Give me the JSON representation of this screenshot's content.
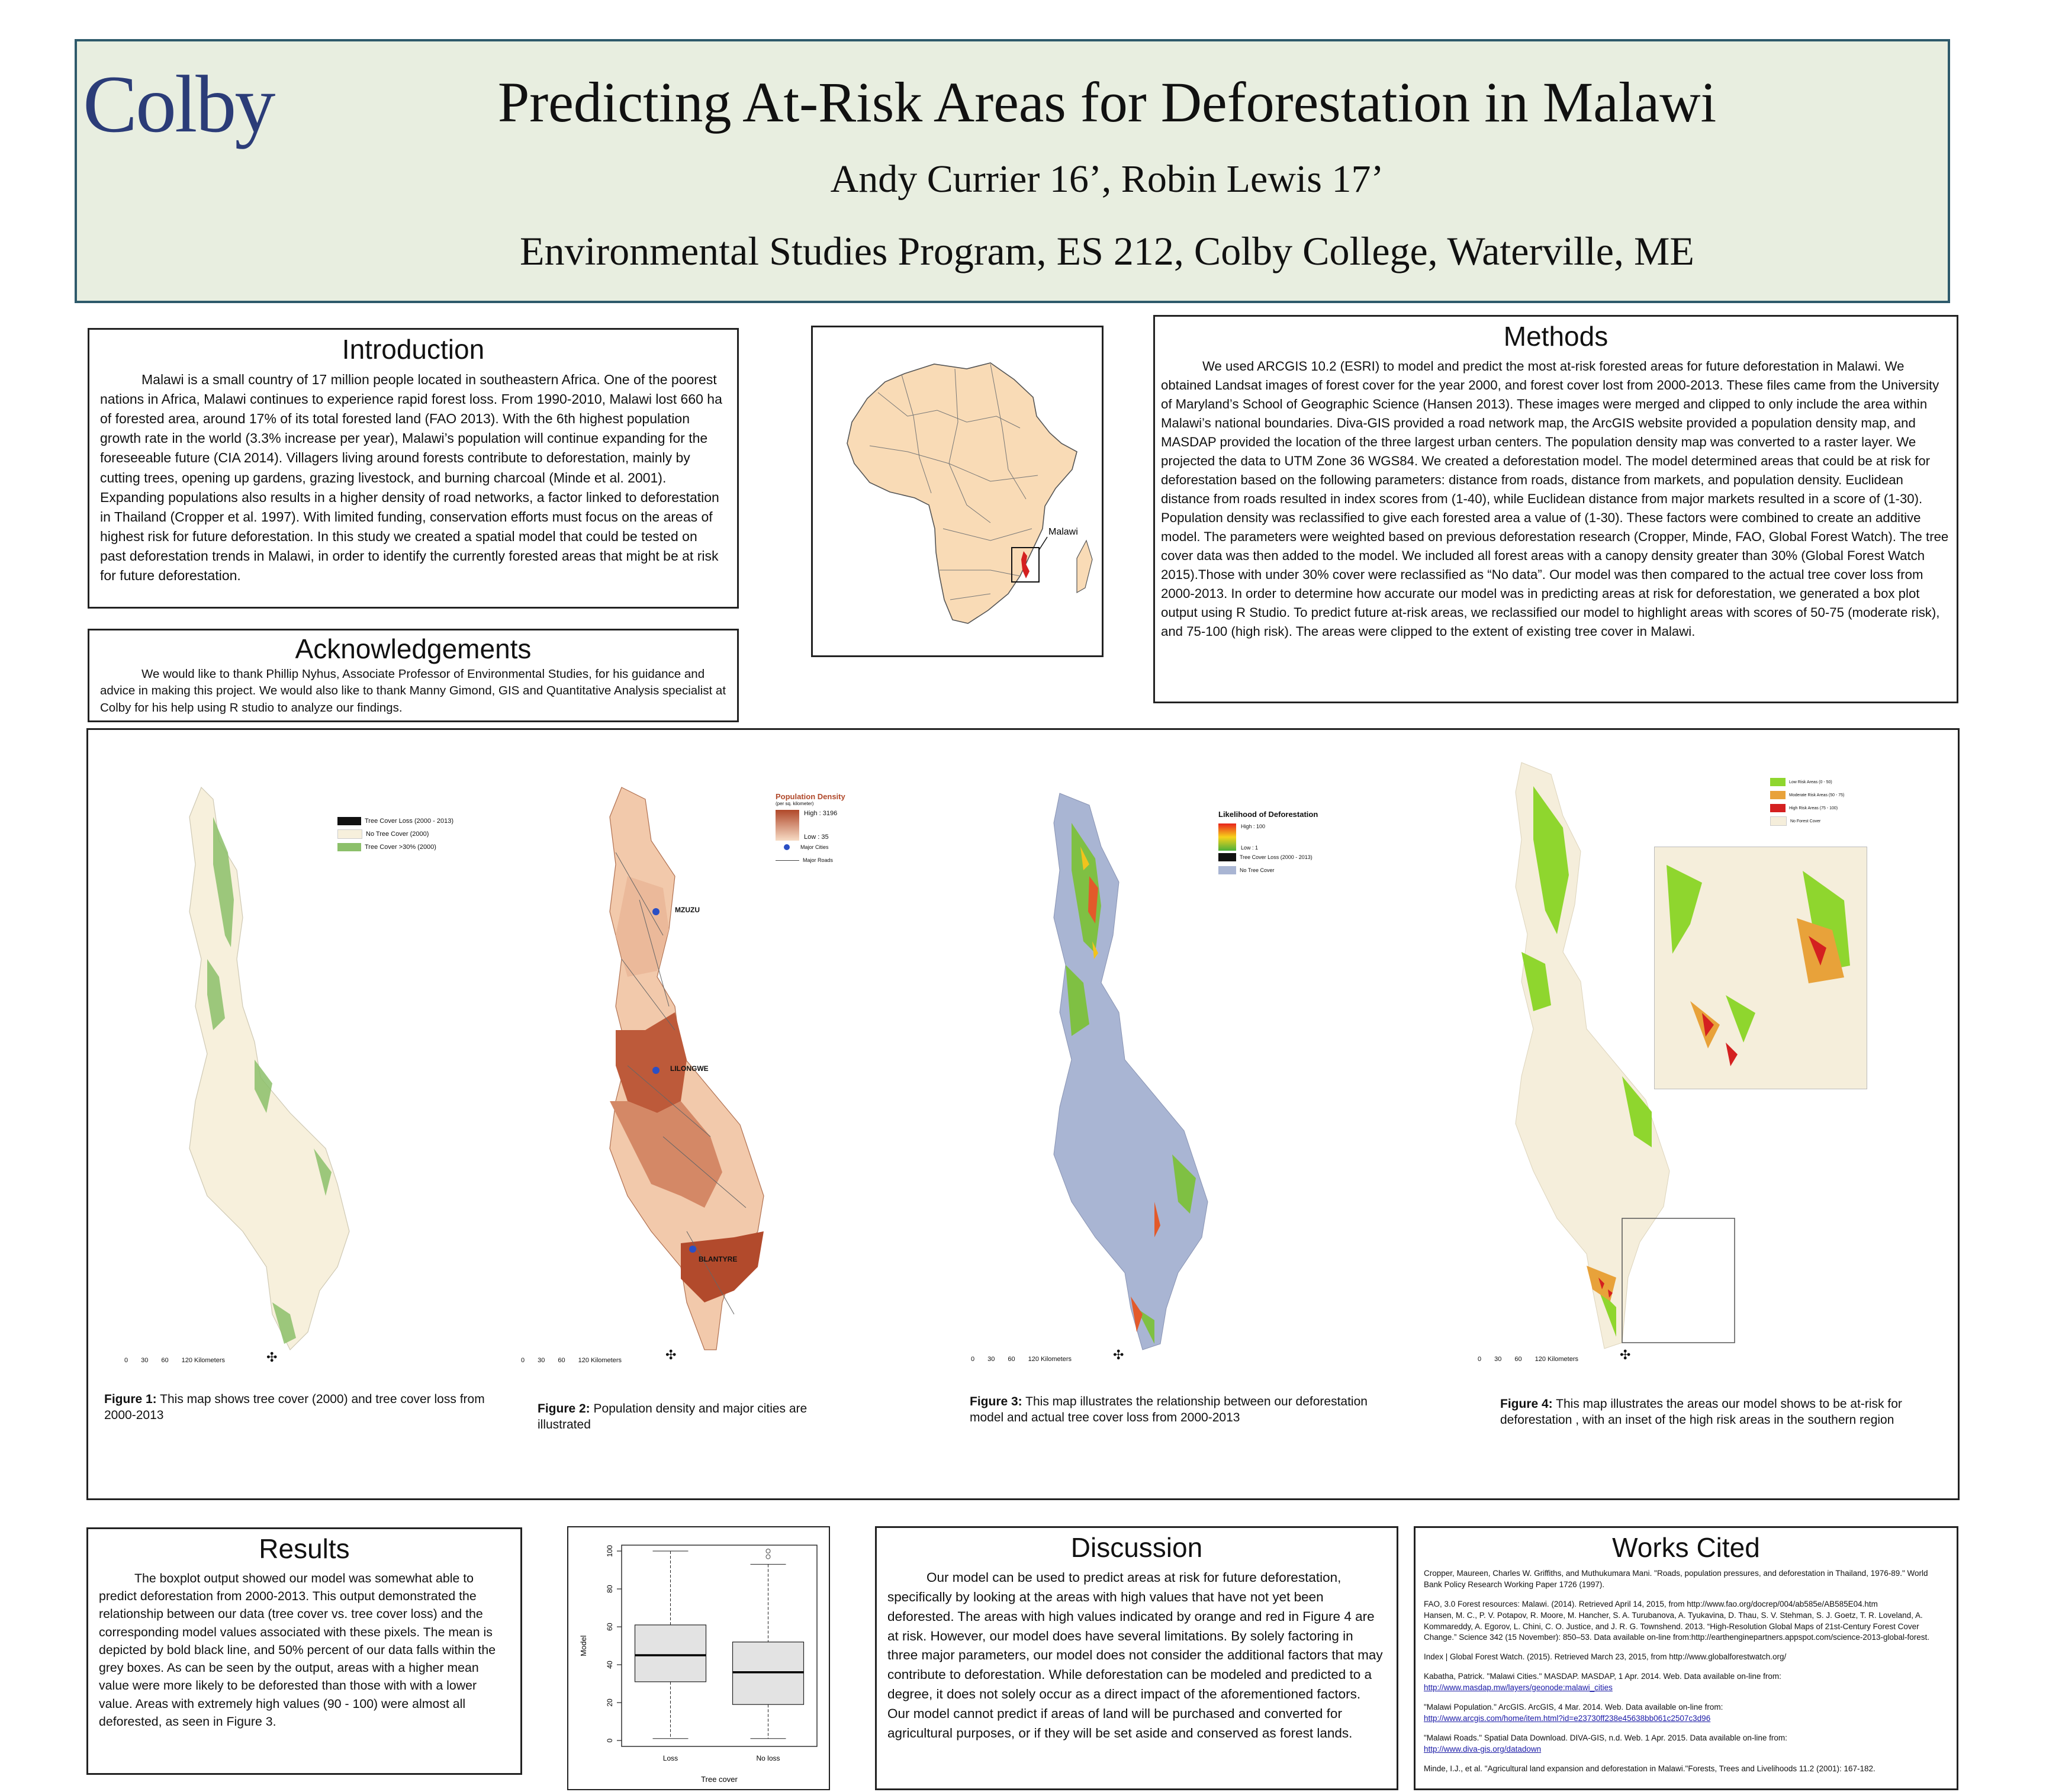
{
  "header": {
    "logo": "Colby",
    "title": "Predicting At-Risk Areas for Deforestation in Malawi",
    "authors": "Andy Currier 16’, Robin Lewis 17’",
    "affiliation": "Environmental Studies Program, ES 212, Colby College, Waterville, ME"
  },
  "introduction": {
    "title": "Introduction",
    "body": "Malawi is a small country of 17 million people located in southeastern Africa. One of the poorest nations in Africa, Malawi continues to experience rapid forest loss. From 1990-2010, Malawi lost 660 ha of forested area, around 17% of its total forested land (FAO 2013). With the 6th highest population growth rate in the world (3.3% increase per year), Malawi’s population will continue expanding for the foreseeable future (CIA 2014). Villagers living around forests contribute to deforestation, mainly by cutting trees, opening up gardens, grazing livestock, and burning charcoal  (Minde et al. 2001). Expanding populations also results in a higher density of road networks, a factor linked to deforestation in Thailand (Cropper et al. 1997). With limited funding, conservation efforts must focus on the areas of highest risk for future deforestation. In this study we created a spatial model that could be tested on past deforestation trends in Malawi, in order to identify the currently forested areas that might be at risk for future deforestation."
  },
  "acknowledgements": {
    "title": "Acknowledgements",
    "body": "We would like to thank Phillip Nyhus, Associate Professor of Environmental Studies, for his guidance and advice in making this project. We would also like to thank Manny Gimond, GIS and Quantitative Analysis specialist at Colby for his help using R studio to analyze our findings."
  },
  "africa_map": {
    "label": "Malawi"
  },
  "methods": {
    "title": "Methods",
    "body": "We used ARCGIS 10.2 (ESRI) to model and predict the most at-risk forested areas for future deforestation in Malawi. We obtained Landsat images of forest cover for the year 2000, and forest cover lost from 2000-2013. These files came from the University of Maryland’s School of Geographic Science (Hansen 2013). These images were merged and clipped to only include the area within Malawi’s national boundaries. Diva-GIS provided a road network map, the ArcGIS website provided a population density map, and MASDAP provided the location of the three largest urban centers. The population density map was converted to a raster layer. We projected the data to UTM Zone 36 WGS84. We created a deforestation model. The model determined areas that could be at risk for deforestation based on the following parameters: distance from roads, distance from markets, and population density. Euclidean distance from roads resulted in index scores from (1-40), while Euclidean distance from major markets resulted in a score of (1-30). Population density was reclassified to give each forested area a value of (1-30). These factors were combined to create an additive model. The parameters were weighted based on previous deforestation research (Cropper, Minde, FAO, Global Forest Watch). The tree cover data was then added to the model. We included all forest areas with a canopy density greater than 30% (Global Forest Watch 2015).Those with under 30% cover were reclassified as “No data”. Our model was then compared to the actual tree cover loss from 2000-2013. In order to determine how accurate our model was in predicting areas at risk for deforestation, we generated a box plot output using R Studio. To predict future at-risk areas, we reclassified our model to highlight areas with scores of 50-75 (moderate risk), and 75-100 (high risk). The areas were clipped to the extent of existing tree cover in Malawi."
  },
  "fig1": {
    "legend": [
      "Tree Cover Loss (2000 - 2013)",
      "No Tree Cover (2000)",
      "Tree Cover >30% (2000)"
    ],
    "scale": [
      "0",
      "30",
      "60",
      "120 Kilometers"
    ],
    "caption_label": "Figure 1:",
    "caption_text": " This map shows tree cover (2000) and tree cover loss from 2000-2013"
  },
  "fig2": {
    "legend_title": "Population Density",
    "legend_unit": "(per sq. kilometer)",
    "legend_high": "High : 3196",
    "legend_low": "Low : 35",
    "legend_cities": "Major Cities",
    "legend_roads": "Major Roads",
    "cities": [
      "MZUZU",
      "LILONGWE",
      "BLANTYRE"
    ],
    "scale": [
      "0",
      "30",
      "60",
      "120 Kilometers"
    ],
    "caption_label": "Figure 2:",
    "caption_text": " Population density and major cities are illustrated"
  },
  "fig3": {
    "legend_title": "Likelihood of Deforestation",
    "legend_high": "High : 100",
    "legend_low": "Low : 1",
    "legend_loss": "Tree Cover Loss (2000 - 2013)",
    "legend_none": "No Tree Cover",
    "scale": [
      "0",
      "30",
      "60",
      "120 Kilometers"
    ],
    "caption_label": "Figure 3:",
    "caption_text": " This map illustrates the relationship between our deforestation model and actual tree cover loss from 2000-2013"
  },
  "fig4": {
    "legend": [
      "Low Risk Areas (0 - 50)",
      "Moderate Risk Areas (50 - 75)",
      "High Risk Areas (75 - 100)",
      "No Forest Cover"
    ],
    "scale": [
      "0",
      "30",
      "60",
      "120 Kilometers"
    ],
    "caption_label": "Figure 4:",
    "caption_text": " This map illustrates the areas our model shows to be at-risk for deforestation , with an inset of the high risk areas in the southern region"
  },
  "results": {
    "title": "Results",
    "body": "The boxplot output showed our model was somewhat able to predict deforestation from 2000-2013. This output demonstrated the relationship between our data (tree cover vs. tree cover loss) and the corresponding model values associated with these pixels. The mean is depicted by bold black line, and 50% percent of our data falls within the grey boxes. As can be seen by the output, areas with a higher mean value were more likely to be deforested than those with with a lower value. Areas with extremely high values (90 - 100) were almost all deforested, as seen in Figure 3."
  },
  "chart_data": {
    "type": "box",
    "categories": [
      "Loss",
      "No loss"
    ],
    "xlabel": "Tree cover",
    "ylabel": "Model",
    "ylim": [
      0,
      100
    ],
    "yticks": [
      "0",
      "20",
      "40",
      "60",
      "80",
      "100"
    ],
    "series": [
      {
        "category": "Loss",
        "min": 1,
        "q1": 31,
        "median": 45,
        "q3": 61,
        "max": 100,
        "outliers": []
      },
      {
        "category": "No loss",
        "min": 1,
        "q1": 19,
        "median": 36,
        "q3": 52,
        "max": 93,
        "outliers": [
          97,
          100
        ]
      }
    ],
    "box_color": "#e3e3e3"
  },
  "discussion": {
    "title": "Discussion",
    "body": "Our model can be used to predict areas at risk for future deforestation, specifically by looking at the areas with high values that have not yet been deforested. The areas with high values indicated by orange and red in Figure 4 are at risk. However, our model does have several limitations. By solely factoring in three major parameters, our model does not consider the additional factors that may contribute to deforestation. While deforestation can be modeled and predicted to a degree, it does not solely occur as a direct impact of the aforementioned factors. Our model cannot predict if areas of land will be purchased and converted for agricultural purposes, or if they will be set aside and conserved as forest lands."
  },
  "works_cited": {
    "title": "Works Cited",
    "refs": [
      {
        "text": "Cropper, Maureen, Charles W. Griffiths, and Muthukumara Mani. \"Roads, population pressures, and deforestation in Thailand, 1976-89.\" World Bank Policy Research Working Paper 1726 (1997).",
        "link": ""
      },
      {
        "text": "FAO, 3.0 Forest resources: Malawi. (2014). Retrieved April 14, 2015, from http://www.fao.org/docrep/004/ab585e/AB585E04.htm\nHansen, M. C., P. V. Potapov, R. Moore, M. Hancher, S. A. Turubanova, A. Tyukavina, D. Thau, S. V. Stehman, S. J. Goetz, T. R. Loveland, A. Kommareddy, A. Egorov, L. Chini, C. O. Justice, and J. R. G. Townshend. 2013. “High-Resolution Global Maps of 21st-Century Forest Cover Change.” Science 342 (15 November): 850–53. Data available on-line from:http://earthenginepartners.appspot.com/science-2013-global-forest.",
        "link": ""
      },
      {
        "text": "Index | Global Forest Watch. (2015). Retrieved March 23, 2015, from http://www.globalforestwatch.org/",
        "link": ""
      },
      {
        "text": "Kabatha, Patrick. \"Malawi Cities.\" MASDAP. MASDAP, 1 Apr. 2014. Web. Data available on-line from:",
        "link": "http://www.masdap.mw/layers/geonode:malawi_cities"
      },
      {
        "text": "\"Malawi Population.\" ArcGIS. ArcGIS, 4 Mar. 2014. Web. Data available on-line from:",
        "link": "http://www.arcgis.com/home/item.html?id=e23730ff238e45638bb061c2507c3d96"
      },
      {
        "text": " \"Malawi Roads.\" Spatial Data Download. DIVA-GIS, n.d. Web. 1 Apr. 2015. Data available on-line from:",
        "link": "http://www.diva-gis.org/datadown"
      },
      {
        "text": "Minde, I.J., et al. \"Agricultural land expansion and deforestation in Malawi.\"Forests, Trees and Livelihoods 11.2 (2001): 167-182.",
        "link": ""
      }
    ]
  }
}
